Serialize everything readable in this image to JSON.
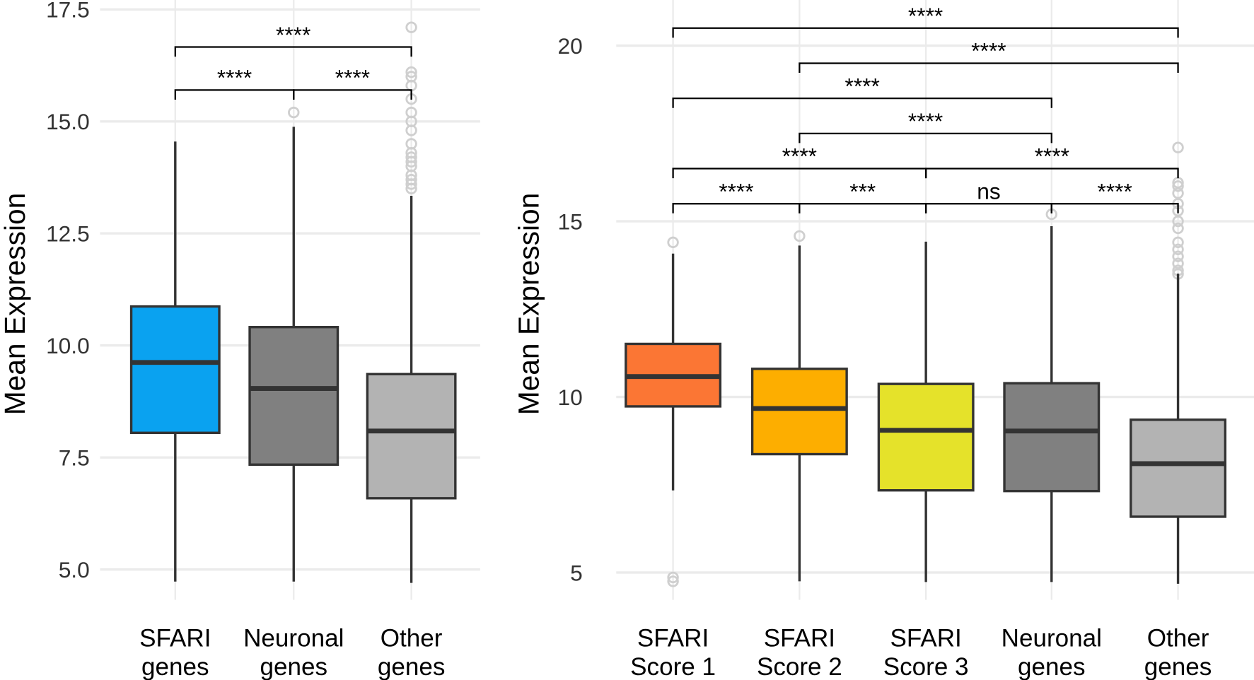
{
  "chart_data": [
    {
      "type": "box",
      "ylabel": "Mean Expression",
      "categories": [
        [
          "SFARI",
          "genes"
        ],
        [
          "Neuronal",
          "genes"
        ],
        [
          "Other",
          "genes"
        ]
      ],
      "colors": [
        "#0aa2f0",
        "#808080",
        "#b3b3b3"
      ],
      "boxes": [
        {
          "whislo": 4.73,
          "q1": 8.05,
          "med": 9.62,
          "q3": 10.87,
          "whishi": 14.55,
          "fliers": []
        },
        {
          "whislo": 4.73,
          "q1": 7.34,
          "med": 9.04,
          "q3": 10.41,
          "whishi": 14.88,
          "fliers": [
            15.2
          ]
        },
        {
          "whislo": 4.7,
          "q1": 6.59,
          "med": 8.09,
          "q3": 9.36,
          "whishi": 13.34,
          "fliers": [
            13.5,
            13.6,
            13.7,
            13.8,
            14.0,
            14.1,
            14.2,
            14.3,
            14.5,
            14.8,
            15.0,
            15.2,
            15.5,
            15.8,
            16.0,
            16.1,
            17.1
          ]
        }
      ],
      "ylim": [
        4.5,
        17.71
      ],
      "yticks": [
        {
          "value": 5,
          "label": "5.0"
        },
        {
          "value": 7.5,
          "label": "7.5"
        },
        {
          "value": 10,
          "label": "10.0"
        },
        {
          "value": 12.5,
          "label": "12.5"
        },
        {
          "value": 15,
          "label": "15.0"
        },
        {
          "value": 17.5,
          "label": "17.5"
        }
      ],
      "grid": true,
      "brackets": [
        {
          "from": 0,
          "to": 2,
          "y": 16.66,
          "label": "****"
        },
        {
          "from": 0,
          "to": 1,
          "y": 15.7,
          "label": "****"
        },
        {
          "from": 1,
          "to": 2,
          "y": 15.7,
          "label": "****"
        }
      ]
    },
    {
      "type": "box",
      "ylabel": "Mean Expression",
      "categories": [
        [
          "SFARI",
          "Score 1"
        ],
        [
          "SFARI",
          "Score 2"
        ],
        [
          "SFARI",
          "Score 3"
        ],
        [
          "Neuronal",
          "genes"
        ],
        [
          "Other",
          "genes"
        ]
      ],
      "colors": [
        "#fb7634",
        "#fdae00",
        "#e5e22a",
        "#808080",
        "#b3b3b3"
      ],
      "boxes": [
        {
          "whislo": 7.34,
          "q1": 9.73,
          "med": 10.58,
          "q3": 11.51,
          "whishi": 14.08,
          "fliers": [
            14.4,
            4.86,
            4.75
          ]
        },
        {
          "whislo": 4.75,
          "q1": 8.37,
          "med": 9.67,
          "q3": 10.8,
          "whishi": 14.31,
          "fliers": [
            14.58
          ]
        },
        {
          "whislo": 4.73,
          "q1": 7.34,
          "med": 9.05,
          "q3": 10.37,
          "whishi": 14.42,
          "fliers": []
        },
        {
          "whislo": 4.73,
          "q1": 7.32,
          "med": 9.03,
          "q3": 10.39,
          "whishi": 14.86,
          "fliers": [
            15.2
          ]
        },
        {
          "whislo": 4.68,
          "q1": 6.59,
          "med": 8.1,
          "q3": 9.35,
          "whishi": 13.51,
          "fliers": [
            13.5,
            13.6,
            13.8,
            14.0,
            14.2,
            14.4,
            14.8,
            15.0,
            15.3,
            15.5,
            15.8,
            16.0,
            16.1,
            17.1
          ]
        }
      ],
      "ylim": [
        4.45,
        21.3
      ],
      "yticks": [
        5,
        10,
        15,
        20
      ],
      "grid": true,
      "brackets": [
        {
          "from": 0,
          "to": 4,
          "y": 20.5,
          "label": "****"
        },
        {
          "from": 1,
          "to": 4,
          "y": 19.5,
          "label": "****"
        },
        {
          "from": 0,
          "to": 3,
          "y": 18.5,
          "label": "****"
        },
        {
          "from": 1,
          "to": 3,
          "y": 17.5,
          "label": "****"
        },
        {
          "from": 0,
          "to": 2,
          "y": 16.5,
          "label": "****"
        },
        {
          "from": 2,
          "to": 4,
          "y": 16.5,
          "label": "****"
        },
        {
          "from": 0,
          "to": 1,
          "y": 15.5,
          "label": "****"
        },
        {
          "from": 1,
          "to": 2,
          "y": 15.5,
          "label": "***"
        },
        {
          "from": 2,
          "to": 3,
          "y": 15.5,
          "label": "ns"
        },
        {
          "from": 3,
          "to": 4,
          "y": 15.5,
          "label": "****"
        }
      ]
    }
  ]
}
